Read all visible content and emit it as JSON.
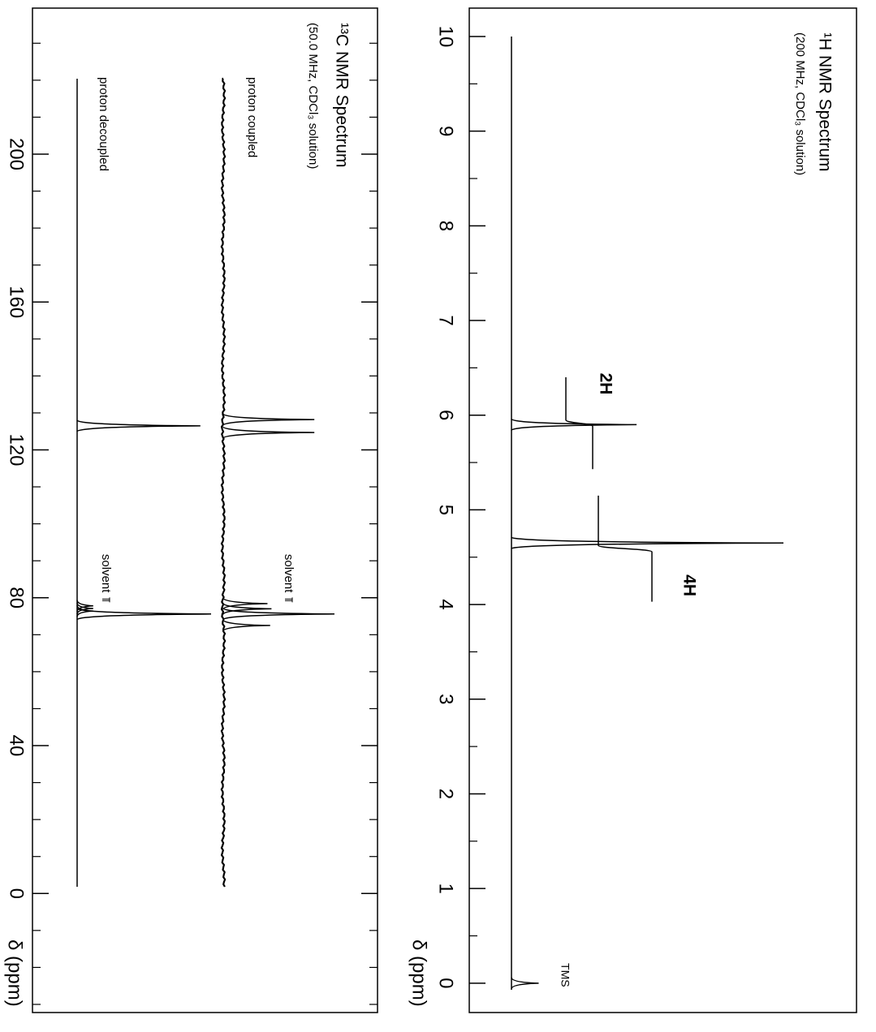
{
  "chart_data": [
    {
      "type": "nmr",
      "title": "¹H NMR Spectrum",
      "subtitle": "(200 MHz, CDCl₃ solution)",
      "xlabel": "δ (ppm)",
      "xlim": [
        10.3,
        -0.31
      ],
      "xticks": [
        10,
        9,
        8,
        7,
        6,
        5,
        4,
        3,
        2,
        1,
        0
      ],
      "minor_xticks": [
        9.5,
        8.5,
        7.5,
        6.5,
        5.5,
        4.5,
        3.5,
        2.5,
        1.5,
        0.5
      ],
      "series": [
        {
          "x": [
            5.9,
            4.65,
            0
          ],
          "values": [
            46,
            100,
            10
          ],
          "color": "#000000"
        }
      ],
      "integrals": [
        {
          "label": "2H",
          "x": [
            6.4,
            5.43
          ],
          "value": 2
        },
        {
          "label": "4H",
          "x": [
            5.15,
            4.03
          ],
          "value": 4
        }
      ],
      "integral_label_color": "#e00000",
      "annotations": [
        {
          "text": "TMS",
          "x": 0
        }
      ]
    },
    {
      "type": "nmr",
      "title": "¹³C NMR Spectrum",
      "subtitle": "(50.0 MHz, CDCl₃ solution)",
      "xlabel": "δ (ppm)",
      "xlim": [
        239.5,
        -32.2
      ],
      "xticks": [
        200,
        160,
        120,
        80,
        40,
        0
      ],
      "minor_xticks": [
        230,
        220,
        210,
        190,
        180,
        170,
        150,
        140,
        130,
        110,
        100,
        90,
        70,
        60,
        50,
        30,
        20,
        10,
        -10,
        -20,
        -30
      ],
      "series": [
        {
          "name": "proton coupled",
          "x": [
            128.2,
            124.7,
            78.4,
            77.0,
            75.6,
            72.5
          ],
          "values": [
            68,
            68,
            33,
            36,
            83,
            35
          ],
          "color": "#000000",
          "annotation": {
            "text": "solvent",
            "x": 77.0
          }
        },
        {
          "name": "proton decoupled",
          "x": [
            126.5,
            77.8,
            77.1,
            76.4,
            75.6
          ],
          "values": [
            92,
            12,
            12,
            12,
            100
          ],
          "color": "#000000",
          "annotation": {
            "text": "solvent",
            "x": 77.0
          }
        }
      ]
    }
  ]
}
